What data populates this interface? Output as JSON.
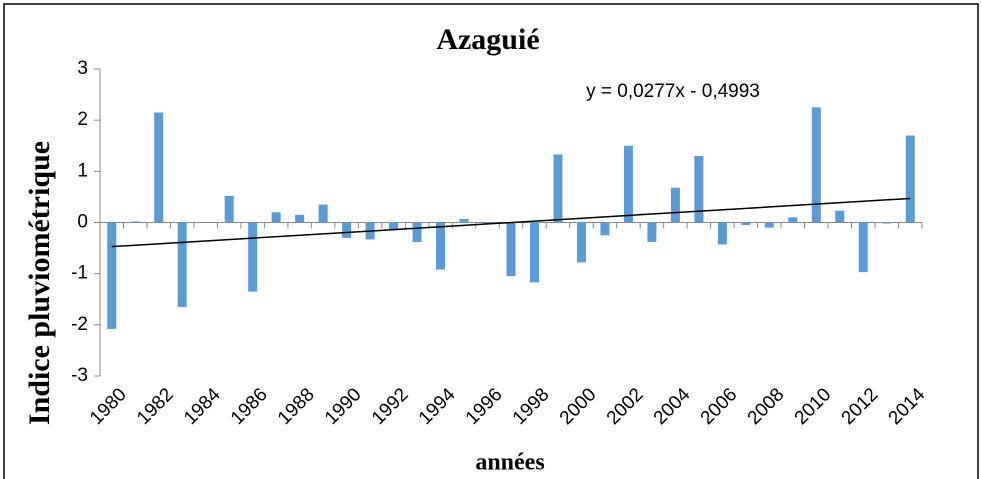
{
  "chart_data": {
    "type": "bar",
    "title": "Azaguié",
    "ylabel": "Indice pluviométrique",
    "xlabel": "années",
    "categories": [
      "1980",
      null,
      "1982",
      null,
      "1984",
      null,
      "1986",
      null,
      "1988",
      null,
      "1990",
      null,
      "1992",
      null,
      "1994",
      null,
      "1996",
      null,
      "1998",
      null,
      "2000",
      null,
      "2002",
      null,
      "2004",
      null,
      "2006",
      null,
      "2008",
      null,
      "2010",
      null,
      "2012",
      null,
      "2014"
    ],
    "values": [
      -2.08,
      0.02,
      2.15,
      -1.65,
      0,
      0.52,
      -1.35,
      0.2,
      0.15,
      0.35,
      -0.3,
      -0.33,
      -0.15,
      -0.38,
      -0.92,
      0.07,
      -0.02,
      -1.05,
      -1.17,
      1.33,
      -0.78,
      -0.25,
      1.5,
      -0.38,
      0.68,
      1.3,
      -0.43,
      -0.05,
      -0.1,
      0.1,
      2.25,
      0.23,
      -0.97,
      -0.02,
      1.7
    ],
    "color": "#5b9bd5",
    "ylim": [
      -3,
      3
    ],
    "yticks": [
      -3,
      -2,
      -1,
      0,
      1,
      2,
      3
    ],
    "trendline": {
      "slope": 0.0277,
      "intercept": -0.4993,
      "label": "y = 0,0277x - 0,4993",
      "color": "#000000"
    }
  }
}
